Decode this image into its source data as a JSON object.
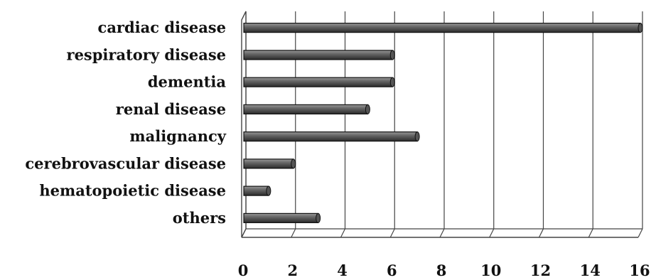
{
  "chart_data": {
    "type": "bar",
    "orientation": "horizontal",
    "style": "3d",
    "categories": [
      "cardiac disease",
      "respiratory disease",
      "dementia",
      "renal disease",
      "malignancy",
      "cerebrovascular disease",
      "hematopoietic disease",
      "others"
    ],
    "values": [
      16,
      6,
      6,
      5,
      7,
      2,
      1,
      3
    ],
    "xlim": [
      0,
      16
    ],
    "xticks": [
      "0",
      "2",
      "4",
      "6",
      "8",
      "10",
      "12",
      "14",
      "16"
    ],
    "grid": true,
    "bar_color": "#555555",
    "grid_color": "#444444"
  }
}
